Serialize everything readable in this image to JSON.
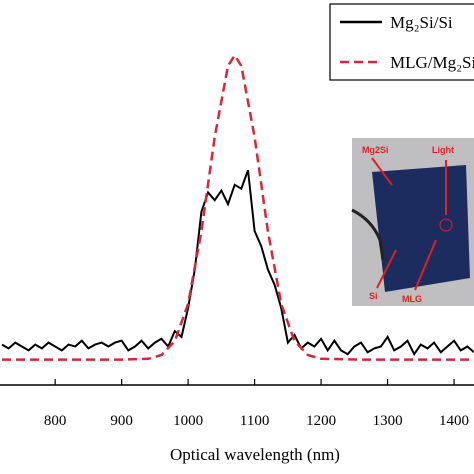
{
  "chart_data": {
    "type": "line",
    "x_label": "Optical wavelength (nm)",
    "xlim": [
      717,
      1430
    ],
    "xticks": [
      800,
      900,
      1000,
      1100,
      1200,
      1300,
      1400
    ],
    "ylim": [
      0,
      100
    ],
    "legend": "top-right",
    "series": [
      {
        "name": "Mg₂Si/Si",
        "color": "#000000",
        "style": "solid",
        "x": [
          720,
          730,
          740,
          750,
          760,
          770,
          780,
          790,
          800,
          810,
          820,
          830,
          840,
          850,
          860,
          870,
          880,
          890,
          900,
          910,
          920,
          930,
          940,
          950,
          960,
          970,
          980,
          990,
          1000,
          1010,
          1020,
          1030,
          1040,
          1050,
          1060,
          1070,
          1080,
          1090,
          1100,
          1110,
          1120,
          1130,
          1140,
          1150,
          1160,
          1170,
          1180,
          1190,
          1200,
          1210,
          1220,
          1230,
          1240,
          1250,
          1260,
          1270,
          1280,
          1290,
          1300,
          1310,
          1320,
          1330,
          1340,
          1350,
          1360,
          1370,
          1380,
          1390,
          1400,
          1410,
          1420,
          1430
        ],
        "values": [
          10.5,
          9.5,
          11,
          10,
          9,
          10.5,
          9.5,
          11,
          10,
          9,
          10.5,
          10,
          11.5,
          9.5,
          10.5,
          11,
          10,
          11,
          11.5,
          9,
          10,
          11.5,
          9.5,
          11,
          12,
          10,
          14,
          12.5,
          20,
          30,
          45,
          50,
          48,
          50.5,
          47,
          52,
          51,
          55.8,
          40,
          36,
          30,
          26,
          20,
          11,
          13,
          9.5,
          11,
          10,
          12,
          9,
          11.5,
          9,
          8,
          10,
          11,
          8.5,
          9.5,
          10,
          12.5,
          9,
          10,
          11.5,
          8,
          10.5,
          9.5,
          11,
          8.5,
          10,
          11.5,
          9,
          10,
          8.5
        ]
      },
      {
        "name": "MLG/Mg₂Si/Si",
        "color": "#d6283c",
        "style": "dashed",
        "x": [
          720,
          780,
          840,
          900,
          940,
          960,
          980,
          1000,
          1020,
          1040,
          1060,
          1070,
          1080,
          1100,
          1120,
          1140,
          1160,
          1180,
          1200,
          1260,
          1320,
          1380,
          1430
        ],
        "values": [
          6.6,
          6.6,
          6.6,
          6.6,
          6.8,
          7.8,
          11.4,
          21.1,
          39.9,
          64.4,
          82.9,
          85.6,
          82.9,
          64.4,
          39.9,
          21.1,
          11.4,
          7.8,
          6.8,
          6.6,
          6.6,
          6.6,
          6.6
        ]
      }
    ],
    "inset": {
      "labels": [
        "Mg2Si",
        "Light",
        "Si",
        "MLG"
      ]
    }
  }
}
